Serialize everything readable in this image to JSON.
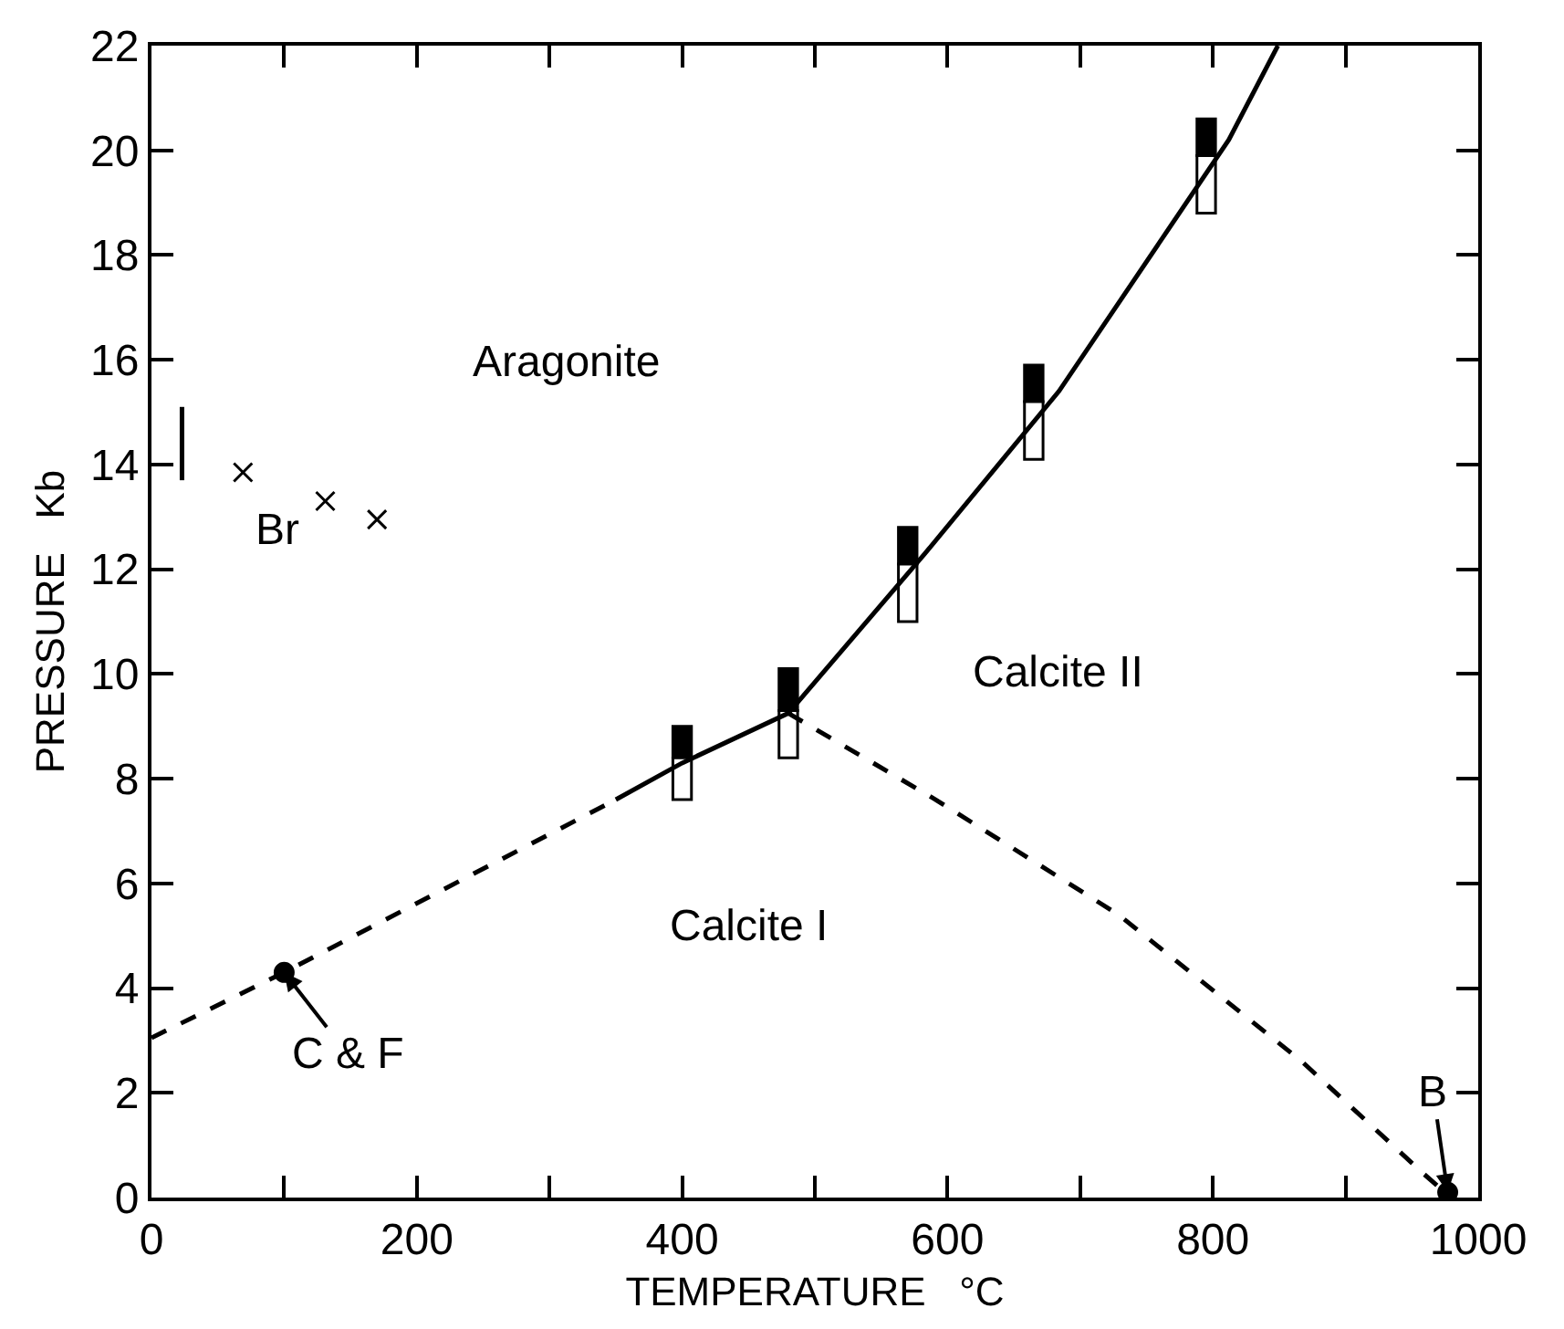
{
  "chart_data": {
    "type": "line",
    "xlabel": "TEMPERATURE   °C",
    "ylabel": "PRESSURE   Kb",
    "xlim": [
      0,
      1000
    ],
    "ylim": [
      0,
      22
    ],
    "xticks": [
      0,
      {
        "value": 100,
        "label": null
      },
      200,
      {
        "value": 300,
        "label": null
      },
      400,
      {
        "value": 500,
        "label": null
      },
      600,
      {
        "value": 700,
        "label": null
      },
      800,
      {
        "value": 900,
        "label": null
      },
      1000
    ],
    "yticks": [
      0,
      2,
      4,
      6,
      8,
      10,
      12,
      14,
      16,
      18,
      20,
      22
    ],
    "grid": false,
    "series": [
      {
        "color": "#000000",
        "line_style": "solid",
        "marker": "none",
        "x": [
          350,
          400,
          480,
          583,
          684,
          812,
          849
        ],
        "values": [
          7.6,
          8.3,
          9.25,
          12.3,
          15.4,
          20.2,
          22
        ]
      },
      {
        "color": "#000000",
        "line_style": "dashed",
        "marker": "none",
        "x": [
          0,
          100,
          350
        ],
        "values": [
          3.05,
          4.3,
          7.6
        ]
      },
      {
        "color": "#000000",
        "line_style": "dashed",
        "marker": "none",
        "x": [
          480,
          591,
          729,
          867,
          959,
          975
        ],
        "values": [
          9.25,
          7.6,
          5.4,
          2.6,
          0.45,
          0.1
        ]
      },
      {
        "color": "#000000",
        "line_style": "solid",
        "marker": "none",
        "x": [
          23,
          23
        ],
        "values": [
          13.7,
          15.1
        ]
      },
      {
        "type": "bar",
        "color": "#000000",
        "x": [
          400,
          480,
          570,
          665,
          795
        ],
        "base": [
          8.4,
          9.3,
          12.1,
          15.2,
          19.9
        ],
        "values": [
          0.6,
          0.8,
          0.7,
          0.7,
          0.7
        ]
      },
      {
        "type": "bar",
        "color": "#ffffff",
        "x": [
          400,
          480,
          570,
          665,
          795
        ],
        "base": [
          7.6,
          8.4,
          11.0,
          14.1,
          18.8
        ],
        "values": [
          0.8,
          0.9,
          1.1,
          1.1,
          1.1
        ]
      },
      {
        "type": "scatter",
        "color": "#000000",
        "marker": "cross",
        "x": [
          69,
          131,
          170
        ],
        "values": [
          13.85,
          13.3,
          12.95
        ]
      },
      {
        "type": "scatter",
        "color": "#000000",
        "marker": "circle",
        "x": [
          100,
          977
        ],
        "values": [
          4.3,
          0.1
        ]
      }
    ],
    "annotations": [
      "Aragonite",
      "Calcite II",
      "Calcite I",
      "Br",
      {
        "text": "C & F",
        "x": 100,
        "y": 4.3
      },
      {
        "text": "B",
        "x": 977,
        "y": 0.1
      }
    ]
  }
}
